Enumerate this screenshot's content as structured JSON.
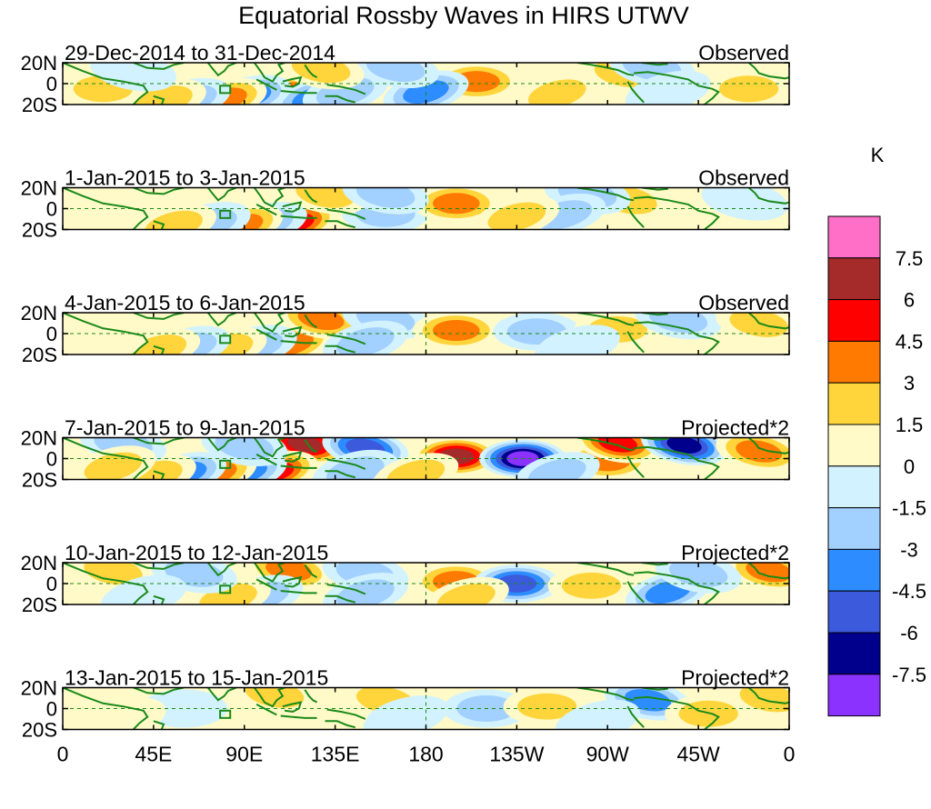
{
  "chart_data": {
    "type": "heatmap",
    "title": "Equatorial Rossby Waves in HIRS UTWV",
    "units_label": "K",
    "x_ticks": [
      "0",
      "45E",
      "90E",
      "135E",
      "180",
      "135W",
      "90W",
      "45W",
      "0"
    ],
    "x_tick_lon": [
      0,
      45,
      90,
      135,
      180,
      225,
      270,
      315,
      360
    ],
    "lat_ticks": [
      "20N",
      "0",
      "20S"
    ],
    "lat_tick_values": [
      20,
      0,
      -20
    ],
    "ylim": [
      -20,
      20
    ],
    "xlim": [
      0,
      360
    ],
    "colorbar": {
      "levels": [
        "7.5",
        "6",
        "4.5",
        "3",
        "1.5",
        "0",
        "-1.5",
        "-3",
        "-4.5",
        "-6",
        "-7.5"
      ],
      "colors": [
        "#ff6ec7",
        "#a52a2a",
        "#ff0000",
        "#ff7a00",
        "#ffd53b",
        "#fffac8",
        "#d2f2ff",
        "#a2d0ff",
        "#2d8cff",
        "#3c5adc",
        "#00008c",
        "#8c32ff"
      ]
    },
    "panels": [
      {
        "period": "29-Dec-2014 to 31-Dec-2014",
        "kind": "Observed",
        "blobs": [
          {
            "lon": 108,
            "lat": -13,
            "v": 6.5
          },
          {
            "lon": 125,
            "lat": -14,
            "v": -3.5
          },
          {
            "lon": 140,
            "lat": -8,
            "v": -2
          },
          {
            "lon": 92,
            "lat": -12,
            "v": -3.5
          },
          {
            "lon": 80,
            "lat": -15,
            "v": 3.5
          },
          {
            "lon": 62,
            "lat": -15,
            "v": -2.5
          },
          {
            "lon": 50,
            "lat": -16,
            "v": 3
          },
          {
            "lon": 205,
            "lat": 2,
            "v": 4
          },
          {
            "lon": 180,
            "lat": -8,
            "v": -3.5
          },
          {
            "lon": 165,
            "lat": 15,
            "v": -2
          },
          {
            "lon": 128,
            "lat": 14,
            "v": 2.5
          },
          {
            "lon": 278,
            "lat": 10,
            "v": 3
          },
          {
            "lon": 292,
            "lat": 16,
            "v": -2.5
          },
          {
            "lon": 245,
            "lat": -10,
            "v": 2
          },
          {
            "lon": 20,
            "lat": -5,
            "v": 2
          },
          {
            "lon": 340,
            "lat": -5,
            "v": 2.5
          },
          {
            "lon": 35,
            "lat": 12,
            "v": -1.5
          },
          {
            "lon": 300,
            "lat": -8,
            "v": -1.5
          }
        ]
      },
      {
        "period": "1-Jan-2015 to 3-Jan-2015",
        "kind": "Observed",
        "blobs": [
          {
            "lon": 115,
            "lat": -14,
            "v": 6
          },
          {
            "lon": 100,
            "lat": -14,
            "v": -3
          },
          {
            "lon": 88,
            "lat": -16,
            "v": 4
          },
          {
            "lon": 72,
            "lat": -14,
            "v": -3
          },
          {
            "lon": 55,
            "lat": -16,
            "v": 3
          },
          {
            "lon": 160,
            "lat": -5,
            "v": -3
          },
          {
            "lon": 195,
            "lat": 5,
            "v": 3.5
          },
          {
            "lon": 130,
            "lat": 14,
            "v": 3
          },
          {
            "lon": 160,
            "lat": 14,
            "v": -2
          },
          {
            "lon": 280,
            "lat": 8,
            "v": 3
          },
          {
            "lon": 260,
            "lat": 14,
            "v": -2.5
          },
          {
            "lon": 248,
            "lat": -6,
            "v": -2
          },
          {
            "lon": 225,
            "lat": -8,
            "v": 2
          },
          {
            "lon": 338,
            "lat": 8,
            "v": -1.5
          },
          {
            "lon": 25,
            "lat": 2,
            "v": 1.5
          }
        ]
      },
      {
        "period": "4-Jan-2015 to 6-Jan-2015",
        "kind": "Observed",
        "blobs": [
          {
            "lon": 113,
            "lat": -10,
            "v": 4.5
          },
          {
            "lon": 95,
            "lat": -12,
            "v": -2.5
          },
          {
            "lon": 80,
            "lat": -14,
            "v": 3
          },
          {
            "lon": 62,
            "lat": -13,
            "v": -2
          },
          {
            "lon": 47,
            "lat": -15,
            "v": 2
          },
          {
            "lon": 128,
            "lat": 14,
            "v": 4
          },
          {
            "lon": 160,
            "lat": 14,
            "v": -2
          },
          {
            "lon": 150,
            "lat": -8,
            "v": -2
          },
          {
            "lon": 195,
            "lat": 3,
            "v": 4
          },
          {
            "lon": 235,
            "lat": 2,
            "v": -3
          },
          {
            "lon": 275,
            "lat": 4,
            "v": 3
          },
          {
            "lon": 305,
            "lat": 14,
            "v": -3
          },
          {
            "lon": 345,
            "lat": 10,
            "v": 2
          },
          {
            "lon": 20,
            "lat": -5,
            "v": 1.5
          },
          {
            "lon": 255,
            "lat": -12,
            "v": -1.5
          }
        ]
      },
      {
        "period": "7-Jan-2015 to 9-Jan-2015",
        "kind": "Projected*2",
        "blobs": [
          {
            "lon": 120,
            "lat": 14,
            "v": 7
          },
          {
            "lon": 105,
            "lat": -13,
            "v": 5.5
          },
          {
            "lon": 90,
            "lat": -13,
            "v": -4.5
          },
          {
            "lon": 75,
            "lat": -14,
            "v": 4
          },
          {
            "lon": 60,
            "lat": -14,
            "v": -3.5
          },
          {
            "lon": 45,
            "lat": -16,
            "v": 3
          },
          {
            "lon": 150,
            "lat": 10,
            "v": -5
          },
          {
            "lon": 145,
            "lat": -12,
            "v": -3
          },
          {
            "lon": 195,
            "lat": 2,
            "v": 7
          },
          {
            "lon": 228,
            "lat": 0,
            "v": -8
          },
          {
            "lon": 270,
            "lat": -2,
            "v": 4.5
          },
          {
            "lon": 275,
            "lat": 15,
            "v": 5
          },
          {
            "lon": 308,
            "lat": 13,
            "v": -7
          },
          {
            "lon": 345,
            "lat": 7,
            "v": 4
          },
          {
            "lon": 90,
            "lat": 12,
            "v": -3
          },
          {
            "lon": 30,
            "lat": 14,
            "v": -2.5
          },
          {
            "lon": 25,
            "lat": -8,
            "v": 3
          },
          {
            "lon": 175,
            "lat": -15,
            "v": 3
          },
          {
            "lon": 245,
            "lat": -14,
            "v": -3
          }
        ]
      },
      {
        "period": "10-Jan-2015 to 12-Jan-2015",
        "kind": "Projected*2",
        "blobs": [
          {
            "lon": 112,
            "lat": 13,
            "v": 4
          },
          {
            "lon": 98,
            "lat": -12,
            "v": -2.5
          },
          {
            "lon": 82,
            "lat": -14,
            "v": 2
          },
          {
            "lon": 150,
            "lat": 10,
            "v": -3
          },
          {
            "lon": 150,
            "lat": -10,
            "v": -2
          },
          {
            "lon": 195,
            "lat": 2,
            "v": 4.5
          },
          {
            "lon": 225,
            "lat": 0,
            "v": -5
          },
          {
            "lon": 262,
            "lat": -2,
            "v": 3
          },
          {
            "lon": 300,
            "lat": -8,
            "v": -3.5
          },
          {
            "lon": 350,
            "lat": 12,
            "v": 4
          },
          {
            "lon": 315,
            "lat": 10,
            "v": -2
          },
          {
            "lon": 25,
            "lat": 12,
            "v": 3
          },
          {
            "lon": 65,
            "lat": 10,
            "v": -2
          },
          {
            "lon": 200,
            "lat": -14,
            "v": 2
          },
          {
            "lon": 40,
            "lat": -12,
            "v": -1.5
          }
        ]
      },
      {
        "period": "13-Jan-2015 to 15-Jan-2015",
        "kind": "Projected*2",
        "blobs": [
          {
            "lon": 105,
            "lat": 14,
            "v": 2
          },
          {
            "lon": 160,
            "lat": 8,
            "v": 2.5
          },
          {
            "lon": 210,
            "lat": 0,
            "v": -2.5
          },
          {
            "lon": 170,
            "lat": -8,
            "v": -1.5
          },
          {
            "lon": 240,
            "lat": 2,
            "v": 2.5
          },
          {
            "lon": 290,
            "lat": 8,
            "v": -3.5
          },
          {
            "lon": 350,
            "lat": 10,
            "v": 3
          },
          {
            "lon": 320,
            "lat": -5,
            "v": 2
          },
          {
            "lon": 60,
            "lat": 0,
            "v": -1.5
          },
          {
            "lon": 30,
            "lat": -10,
            "v": 1.5
          },
          {
            "lon": 130,
            "lat": -14,
            "v": 1.5
          },
          {
            "lon": 265,
            "lat": -12,
            "v": -1.5
          }
        ]
      }
    ]
  }
}
